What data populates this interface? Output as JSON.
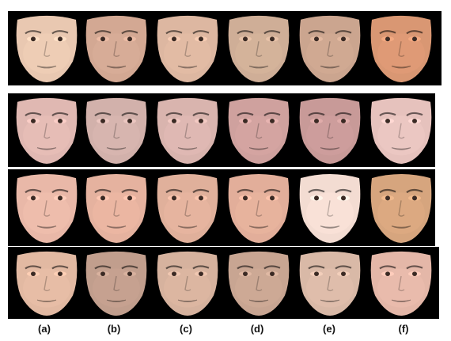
{
  "column_labels": [
    "(a)",
    "(b)",
    "(c)",
    "(d)",
    "(e)",
    "(f)"
  ],
  "rows": [
    {
      "tones": [
        "#e9c8b1",
        "#d3a893",
        "#ddb7a1",
        "#cfae97",
        "#cba58f",
        "#d99773"
      ]
    },
    {
      "tones": [
        "#e0b8b2",
        "#d2b1ab",
        "#d9b4ae",
        "#cfa19e",
        "#c89a98",
        "#e6c2bd"
      ]
    },
    {
      "tones": [
        "#e9b8a8",
        "#e5b29f",
        "#e0b09b",
        "#e2ae9a",
        "#f3dcd2",
        "#d6a57e"
      ]
    },
    {
      "tones": [
        "#e2b9a2",
        "#c19e8d",
        "#d6b29e",
        "#c8a592",
        "#d9b9a7",
        "#e4b7a8"
      ]
    }
  ]
}
